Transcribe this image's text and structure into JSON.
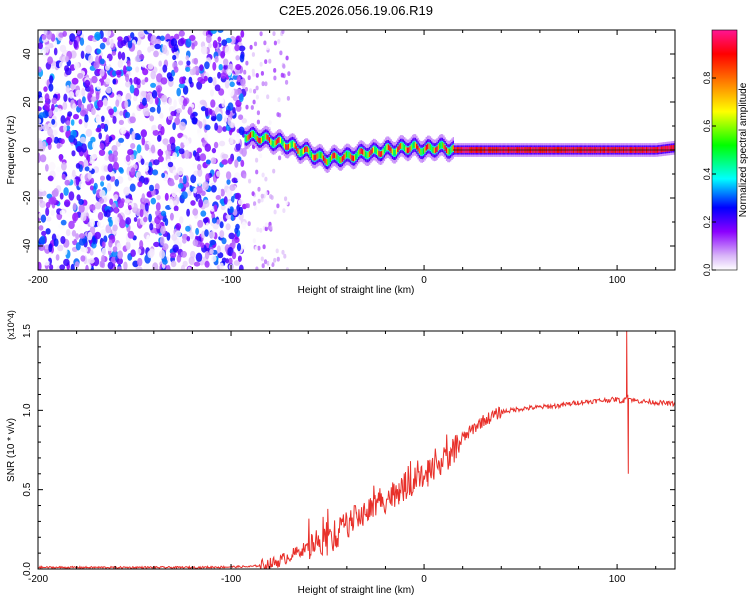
{
  "title": "C2E5.2026.056.19.06.R19",
  "chart_data": [
    {
      "type": "heatmap",
      "xlabel": "Height of straight line (km)",
      "ylabel": "Frequency (Hz)",
      "xlim": [
        -200,
        130
      ],
      "ylim": [
        -50,
        50
      ],
      "xticks": [
        -200,
        -100,
        0,
        100
      ],
      "yticks": [
        40,
        20,
        0,
        -20,
        -40
      ],
      "colorbar": {
        "label": "Normalized spectral amplitude",
        "range": [
          0.0,
          1.0
        ],
        "ticks": [
          0.0,
          0.2,
          0.4,
          0.6,
          0.8
        ],
        "colors": [
          "#ffffff",
          "#d8b4f8",
          "#8b00ff",
          "#0000ff",
          "#00ffff",
          "#00ff00",
          "#ffff00",
          "#ff8000",
          "#ff0000",
          "#ff1493"
        ]
      },
      "noise_region": {
        "x_from": -200,
        "x_to": -93,
        "amplitude": "0.0-0.35"
      },
      "sparse_region": {
        "x_from": -93,
        "x_to": -70,
        "amplitude": "0.0-0.15"
      },
      "signal_track": {
        "x": [
          -93,
          -85,
          -80,
          -75,
          -70,
          -65,
          -60,
          -55,
          -50,
          -45,
          -40,
          -35,
          -30,
          -25,
          -20,
          -15,
          -10,
          -5,
          0,
          5,
          10,
          15,
          30,
          60,
          100,
          120,
          130
        ],
        "y": [
          6,
          5,
          4,
          3,
          2,
          0,
          -1,
          -3,
          -4,
          -3,
          -3,
          -2,
          -1,
          -1,
          0,
          0,
          1,
          1,
          0,
          1,
          1,
          0,
          0,
          0,
          0,
          0,
          1
        ]
      }
    },
    {
      "type": "line",
      "series_name": "SNR",
      "xlabel": "Height of straight line (km)",
      "ylabel": "SNR (10 * v/v)",
      "y_multiplier": "(x10^4)",
      "xlim": [
        -200,
        130
      ],
      "ylim": [
        0.0,
        1.5
      ],
      "xticks": [
        -200,
        -100,
        0,
        100
      ],
      "yticks": [
        0.0,
        0.5,
        1.0,
        1.5
      ],
      "color": "#e8302a",
      "x": [
        -200,
        -120,
        -90,
        -80,
        -75,
        -70,
        -65,
        -60,
        -55,
        -50,
        -45,
        -40,
        -35,
        -30,
        -25,
        -20,
        -15,
        -10,
        -5,
        0,
        5,
        10,
        15,
        20,
        25,
        30,
        35,
        40,
        50,
        60,
        70,
        80,
        90,
        100,
        103,
        105,
        107,
        110,
        120,
        130
      ],
      "y": [
        0.01,
        0.01,
        0.015,
        0.03,
        0.05,
        0.08,
        0.11,
        0.14,
        0.18,
        0.17,
        0.22,
        0.28,
        0.32,
        0.36,
        0.4,
        0.44,
        0.48,
        0.52,
        0.55,
        0.58,
        0.62,
        0.68,
        0.75,
        0.82,
        0.88,
        0.93,
        0.96,
        0.99,
        1.01,
        1.02,
        1.03,
        1.05,
        1.06,
        1.07,
        1.05,
        1.1,
        1.07,
        1.06,
        1.05,
        1.04
      ],
      "spikes": [
        {
          "x": -35,
          "y": 0.36
        },
        {
          "x": -22,
          "y": 0.45
        },
        {
          "x": -13,
          "y": 0.54
        },
        {
          "x": -7,
          "y": 0.68
        },
        {
          "x": 2,
          "y": 0.52
        },
        {
          "x": 105,
          "y": 1.5
        },
        {
          "x": 105.8,
          "y": 0.6
        }
      ]
    }
  ]
}
